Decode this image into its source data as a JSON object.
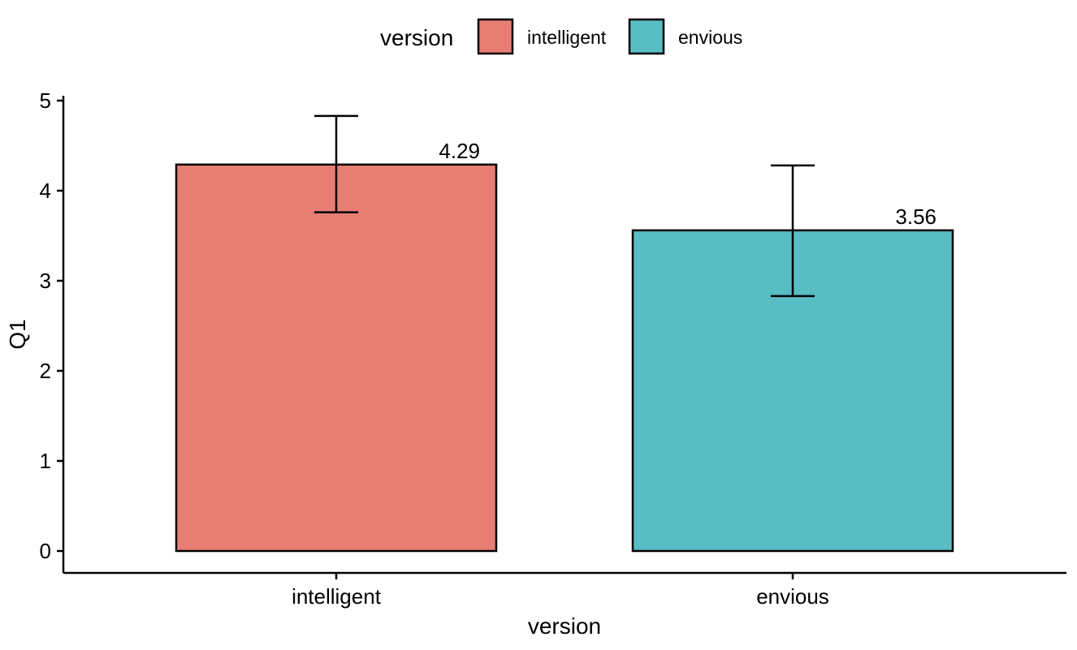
{
  "chart_data": {
    "type": "bar",
    "title": "",
    "xlabel": "version",
    "ylabel": "Q1",
    "categories": [
      "intelligent",
      "envious"
    ],
    "values": [
      4.29,
      3.56
    ],
    "data_labels": [
      "4.29",
      "3.56"
    ],
    "error_bars": [
      {
        "low": 3.76,
        "high": 4.83
      },
      {
        "low": 2.83,
        "high": 4.28
      }
    ],
    "colors": [
      "#E87D73",
      "#58BCC3"
    ],
    "ylim": [
      0,
      5
    ],
    "y_ticks": [
      0,
      1,
      2,
      3,
      4,
      5
    ],
    "y_tick_labels": [
      "0",
      "1",
      "2",
      "3",
      "4",
      "5"
    ],
    "grid": false,
    "legend": {
      "title": "version",
      "position": "top",
      "items": [
        {
          "label": "intelligent",
          "color": "#E87D73"
        },
        {
          "label": "envious",
          "color": "#58BCC3"
        }
      ]
    }
  }
}
